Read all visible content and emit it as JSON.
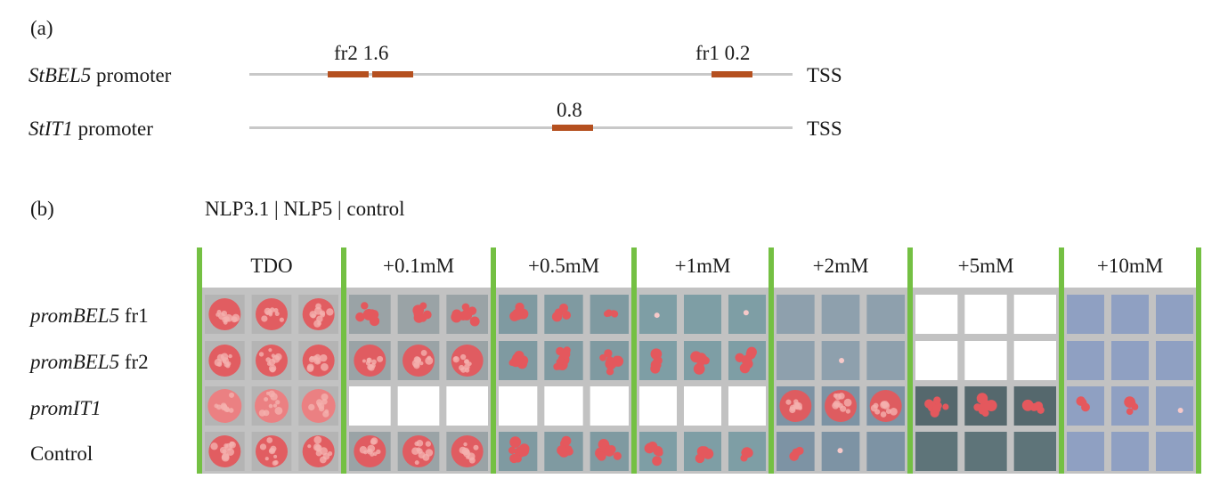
{
  "panel_a": {
    "label": "(a)",
    "promoters": [
      {
        "name_italic": "StBEL5",
        "name_rest": " promoter",
        "end_label": "TSS",
        "annotations": [
          "fr2 1.6",
          "fr1 0.2"
        ]
      },
      {
        "name_italic": "StIT1",
        "name_rest": " promoter",
        "end_label": "TSS",
        "annotations": [
          "0.8"
        ]
      }
    ]
  },
  "panel_b": {
    "label": "(b)",
    "legend": "NLP3.1 | NLP5 | control",
    "conditions": [
      "TDO",
      "+0.1mM",
      "+0.5mM",
      "+1mM",
      "+2mM",
      "+5mM",
      "+10mM"
    ],
    "rows": [
      {
        "italic": "promBEL5",
        "rest": " fr1"
      },
      {
        "italic": "promBEL5",
        "rest": " fr2"
      },
      {
        "italic": "promIT1",
        "rest": ""
      },
      {
        "italic": "",
        "rest": "Control"
      }
    ],
    "growth": [
      [
        [
          5,
          5,
          5
        ],
        [
          4,
          4,
          4
        ],
        [
          2,
          2,
          2
        ],
        [
          1,
          0,
          1
        ],
        [
          0,
          0,
          0
        ],
        [
          -1,
          -1,
          -1
        ],
        [
          0,
          0,
          0
        ]
      ],
      [
        [
          5,
          5,
          5
        ],
        [
          5,
          5,
          5
        ],
        [
          4,
          4,
          4
        ],
        [
          3,
          3,
          3
        ],
        [
          0,
          1,
          0
        ],
        [
          -1,
          -1,
          -1
        ],
        [
          0,
          0,
          0
        ]
      ],
      [
        [
          6,
          6,
          6
        ],
        [
          -1,
          -1,
          -1
        ],
        [
          -1,
          -1,
          -1
        ],
        [
          -1,
          -1,
          -1
        ],
        [
          5,
          5,
          5
        ],
        [
          4,
          4,
          2
        ],
        [
          2,
          2,
          1
        ]
      ],
      [
        [
          5,
          5,
          5
        ],
        [
          5,
          5,
          5
        ],
        [
          4,
          4,
          4
        ],
        [
          3,
          3,
          2
        ],
        [
          2,
          1,
          0
        ],
        [
          0,
          0,
          0
        ],
        [
          0,
          0,
          0
        ]
      ]
    ],
    "colors": {
      "divider_green": "#74c043",
      "frame_gray": "#c2c2c2",
      "fragment_orange": "#b5501f",
      "colony_red": "#e4585d"
    }
  }
}
